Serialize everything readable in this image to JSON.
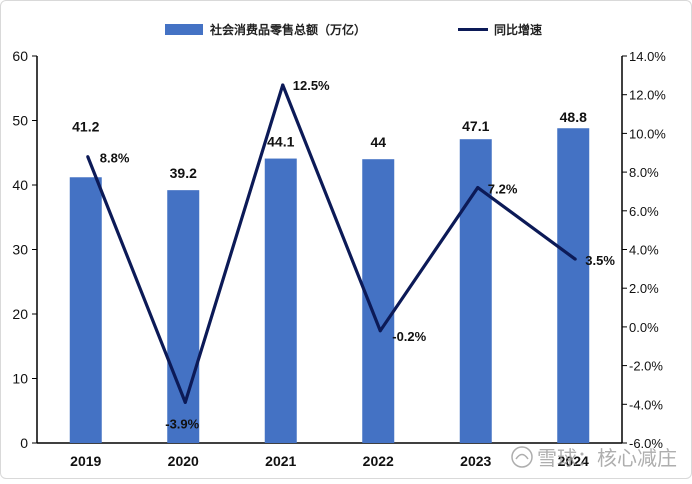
{
  "chart_data": {
    "type": "bar+line",
    "categories": [
      "2019",
      "2020",
      "2021",
      "2022",
      "2023",
      "2024"
    ],
    "series": [
      {
        "name": "社会消费品零售总额（万亿）",
        "type": "bar",
        "axis": "left",
        "values": [
          41.2,
          39.2,
          44.1,
          44,
          47.1,
          48.8
        ],
        "labels": [
          "41.2",
          "39.2",
          "44.1",
          "44",
          "47.1",
          "48.8"
        ],
        "color": "#4472C4"
      },
      {
        "name": "同比增速",
        "type": "line",
        "axis": "right",
        "values": [
          8.8,
          -3.9,
          12.5,
          -0.2,
          7.2,
          3.5
        ],
        "labels": [
          "8.8%",
          "-3.9%",
          "12.5%",
          "-0.2%",
          "7.2%",
          "3.5%"
        ],
        "color": "#0C1A57"
      }
    ],
    "y_left": {
      "min": 0,
      "max": 60,
      "ticks": [
        "0",
        "10",
        "20",
        "30",
        "40",
        "50",
        "60"
      ]
    },
    "y_right": {
      "min": -6,
      "max": 14,
      "ticks": [
        "-6.0%",
        "-4.0%",
        "-2.0%",
        "0.0%",
        "2.0%",
        "4.0%",
        "6.0%",
        "8.0%",
        "10.0%",
        "12.0%",
        "14.0%"
      ]
    },
    "legend_position": "top-center",
    "grid": false
  },
  "watermark": {
    "text": "雪球：核心减庄",
    "icon": "snowball-logo-icon"
  }
}
